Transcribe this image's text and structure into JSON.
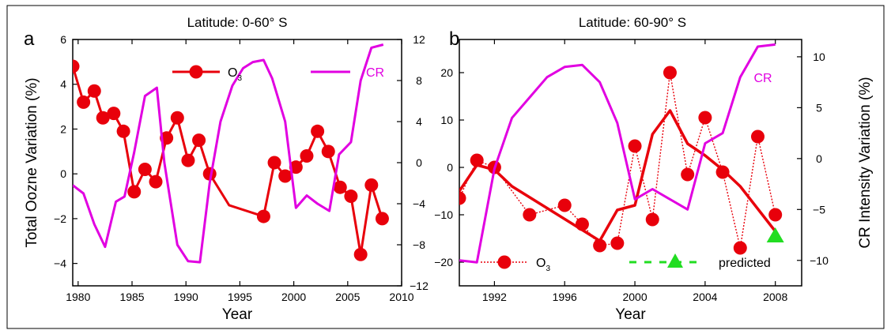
{
  "chart_data": [
    {
      "id": "a",
      "type": "line",
      "panel_label": "a",
      "title": "Latitude: 0-60° S",
      "xlabel": "Year",
      "ylabel": "Total Oozne Variation (%)",
      "y2label": "",
      "xlim": [
        1979.5,
        2010
      ],
      "ylim": [
        -5,
        6
      ],
      "y2lim": [
        -12,
        12
      ],
      "xticks": [
        1980,
        1985,
        1990,
        1995,
        2000,
        2005,
        2010
      ],
      "yticks": [
        -4,
        -2,
        0,
        2,
        4,
        6
      ],
      "y2ticks": [
        -12,
        -8,
        -4,
        0,
        4,
        8,
        12
      ],
      "legend": [
        {
          "label": "O",
          "sub": "3",
          "color": "#e8000b",
          "marker": "circle"
        },
        {
          "label": "CR",
          "color": "#e100e1"
        }
      ],
      "series": [
        {
          "name": "O3",
          "axis": "left",
          "color": "#e8000b",
          "style": "solid-markers",
          "x": [
            1979.5,
            1980.5,
            1981.5,
            1982.3,
            1983.3,
            1984.2,
            1985.2,
            1986.2,
            1987.2,
            1988.2,
            1989.2,
            1990.2,
            1991.2,
            1992.2,
            1994.0,
            1997.2,
            1998.2,
            1999.2,
            2000.2,
            2001.2,
            2002.2,
            2003.2,
            2004.3,
            2005.3,
            2006.2,
            2007.2,
            2008.2
          ],
          "y": [
            4.8,
            3.2,
            3.7,
            2.5,
            2.7,
            1.9,
            -0.8,
            0.2,
            -0.35,
            1.6,
            2.5,
            0.6,
            1.5,
            0.0,
            -1.4,
            -1.9,
            0.5,
            -0.1,
            0.3,
            0.8,
            1.9,
            1.0,
            -0.6,
            -1.0,
            -3.6,
            -0.5,
            -2.0
          ],
          "markers": [
            true,
            true,
            true,
            true,
            true,
            true,
            true,
            true,
            true,
            true,
            true,
            true,
            true,
            true,
            false,
            true,
            true,
            true,
            true,
            true,
            true,
            true,
            true,
            true,
            true,
            true,
            true
          ]
        },
        {
          "name": "CR",
          "axis": "right",
          "color": "#e100e1",
          "style": "line",
          "x": [
            1979.5,
            1980.5,
            1981.5,
            1982.5,
            1983.5,
            1984.3,
            1985.2,
            1986.2,
            1987.3,
            1988.0,
            1989.2,
            1990.2,
            1991.3,
            1992.2,
            1993.2,
            1994.3,
            1995.3,
            1996.2,
            1997.2,
            1998.0,
            1999.2,
            2000.2,
            2001.2,
            2002.2,
            2003.3,
            2004.2,
            2005.3,
            2006.2,
            2007.2,
            2008.3
          ],
          "y": [
            -2.2,
            -3.0,
            -6.0,
            -8.2,
            -3.8,
            -3.3,
            1.0,
            6.5,
            7.3,
            0.0,
            -8.0,
            -9.6,
            -9.7,
            -2.0,
            4.0,
            7.5,
            9.2,
            9.8,
            10.0,
            8.2,
            4.0,
            -4.4,
            -3.2,
            -4.0,
            -4.7,
            0.8,
            2.0,
            8.0,
            11.2,
            11.5
          ]
        }
      ]
    },
    {
      "id": "b",
      "type": "line",
      "panel_label": "b",
      "title": "Latitude: 60-90° S",
      "xlabel": "Year",
      "ylabel": "",
      "y2label": "CR Intensity Variation (%)",
      "xlim": [
        1990,
        2009.5
      ],
      "ylim": [
        -25,
        27
      ],
      "y2lim": [
        -12.5,
        11.7
      ],
      "xticks": [
        1992,
        1996,
        2000,
        2004,
        2008
      ],
      "yticks": [
        -20,
        -10,
        0,
        10,
        20
      ],
      "y2ticks": [
        -10,
        -5,
        0,
        5,
        10
      ],
      "annotation": {
        "text": "CR",
        "color": "#e100e1"
      },
      "legend": [
        {
          "label": "O",
          "sub": "3",
          "color": "#e8000b",
          "marker": "circle",
          "linestyle": "dotted"
        },
        {
          "label": "predicted",
          "color": "#22dd22",
          "marker": "triangle",
          "linestyle": "dashed"
        }
      ],
      "series": [
        {
          "name": "O3",
          "axis": "left",
          "color": "#e8000b",
          "style": "dotted-markers",
          "x": [
            1990,
            1991,
            1992,
            1994,
            1996,
            1997,
            1998,
            1999,
            2000,
            2001,
            2002,
            2003,
            2004,
            2005,
            2006,
            2007,
            2008
          ],
          "y": [
            -6.5,
            1.5,
            0.0,
            -10.0,
            -8.0,
            -12.0,
            -16.5,
            -16.0,
            4.5,
            -11.0,
            20.0,
            -1.5,
            10.5,
            -1.0,
            -17.0,
            6.5,
            -10.0
          ]
        },
        {
          "name": "predicted O3",
          "axis": "left",
          "color": "#e8000b",
          "style": "thick",
          "x": [
            1990,
            1991,
            1992,
            1993,
            1998,
            1999,
            2000,
            2001,
            2002,
            2003,
            2004,
            2005,
            2006,
            2008
          ],
          "y": [
            -5.0,
            0.5,
            -0.5,
            -4.0,
            -15.5,
            -9.0,
            -8.0,
            7.0,
            12.0,
            5.0,
            2.5,
            -0.5,
            -4.0,
            -13.5
          ]
        },
        {
          "name": "predicted",
          "axis": "left",
          "color": "#22dd22",
          "style": "triangle",
          "x": [
            2008
          ],
          "y": [
            -14.5
          ]
        },
        {
          "name": "CR",
          "axis": "right",
          "color": "#e100e1",
          "style": "line",
          "x": [
            1990,
            1991,
            1992,
            1993,
            1994,
            1995,
            1996,
            1997,
            1998,
            1999,
            2000,
            2001,
            2002,
            2003,
            2004,
            2005,
            2006,
            2007,
            2008
          ],
          "y": [
            -10.0,
            -10.2,
            -1.0,
            4.0,
            6.0,
            8.0,
            9.0,
            9.2,
            7.5,
            3.5,
            -4.0,
            -3.0,
            -4.0,
            -5.0,
            1.5,
            2.5,
            8.0,
            11.0,
            11.2
          ]
        }
      ]
    }
  ]
}
